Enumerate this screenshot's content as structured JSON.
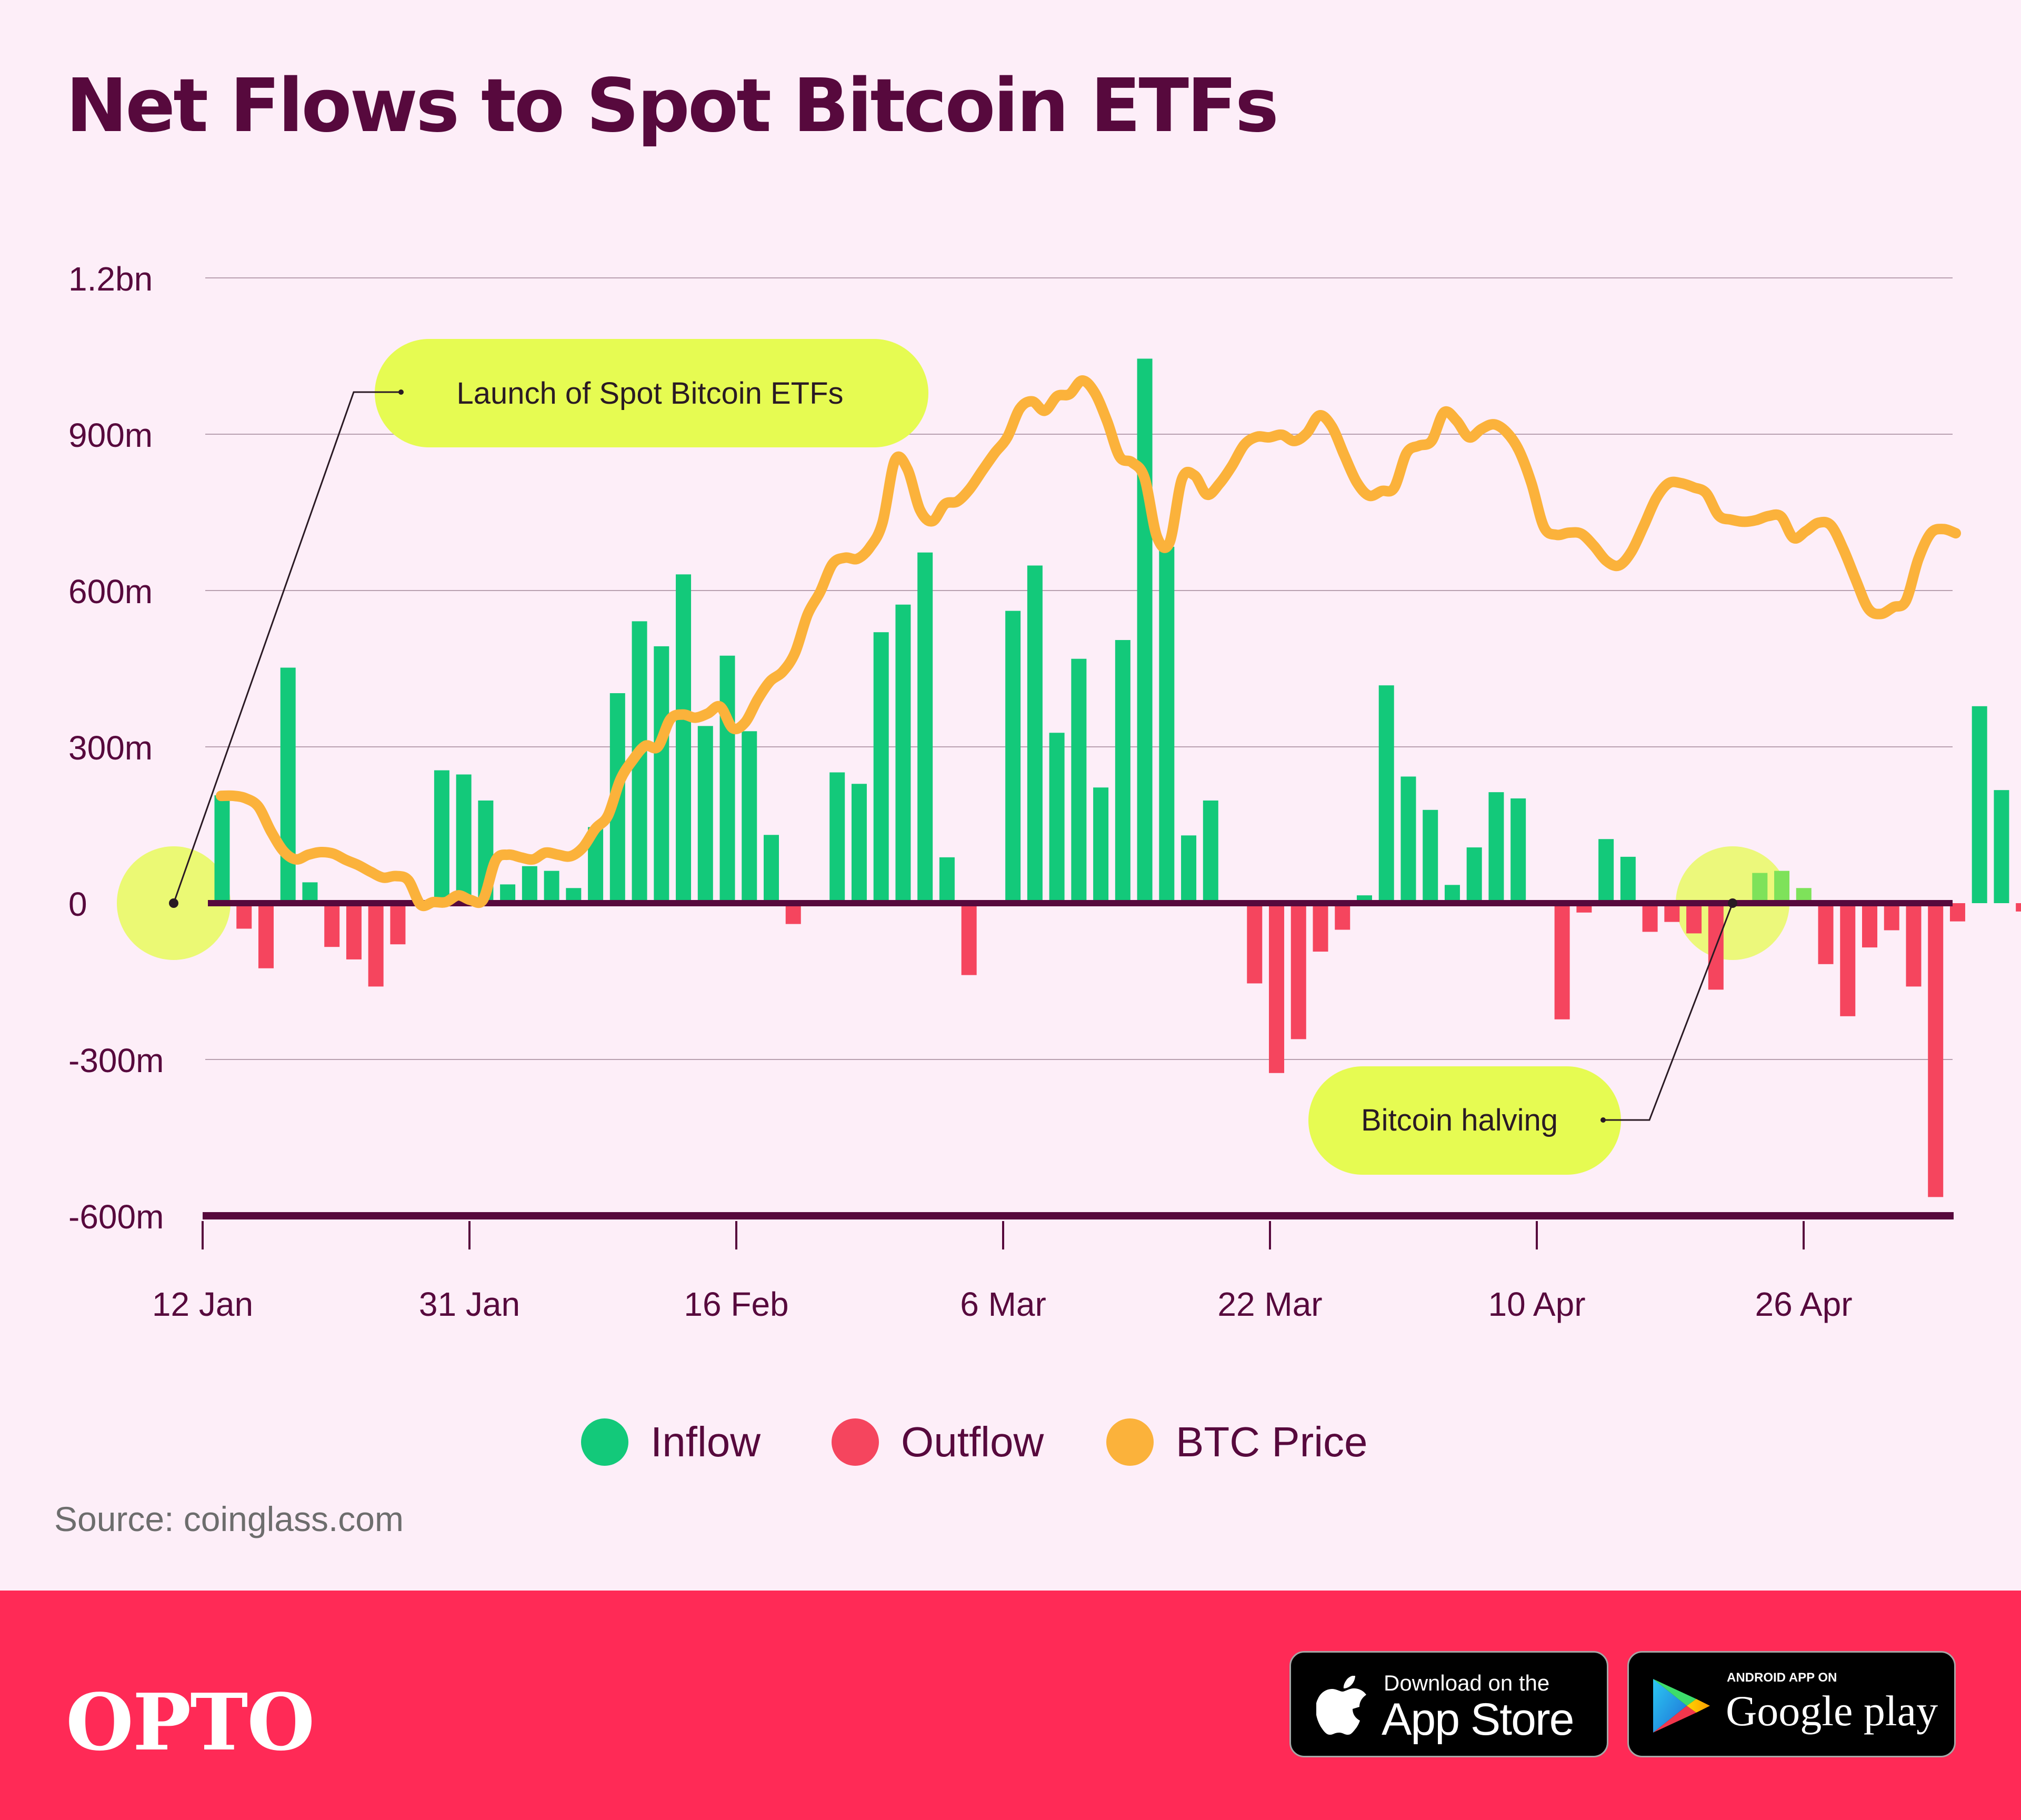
{
  "title": "Net Flows to Spot Bitcoin ETFs",
  "colors": {
    "background": "#fdeef8",
    "title": "#57093d",
    "inflow": "#13c97a",
    "outflow": "#f5455e",
    "btc_price": "#fbb23b",
    "annotation_bubble": "#e6fb52",
    "grid": "#b8a0b0",
    "footer": "#ff2a56"
  },
  "chart_data": {
    "type": "bar",
    "ylim": [
      -600,
      1200
    ],
    "y_unit": "m USD",
    "y_ticks": [
      {
        "value": 1200,
        "label": "1.2bn"
      },
      {
        "value": 900,
        "label": "900m"
      },
      {
        "value": 600,
        "label": "600m"
      },
      {
        "value": 300,
        "label": "300m"
      },
      {
        "value": 0,
        "label": "0"
      },
      {
        "value": -300,
        "label": "-300m"
      },
      {
        "value": -600,
        "label": "-600m"
      }
    ],
    "x_ticks": [
      {
        "index": 0,
        "label": "12 Jan"
      },
      {
        "index": 12,
        "label": "31 Jan"
      },
      {
        "index": 24,
        "label": "16 Feb"
      },
      {
        "index": 36,
        "label": "6 Mar"
      },
      {
        "index": 48,
        "label": "22 Mar"
      },
      {
        "index": 60,
        "label": "10 Apr"
      },
      {
        "index": 72,
        "label": "26 Apr"
      }
    ],
    "grid": true,
    "legend_position": "bottom",
    "series": [
      {
        "name": "Inflow",
        "type": "bar",
        "color": "#13c97a"
      },
      {
        "name": "Outflow",
        "type": "bar",
        "color": "#f5455e"
      },
      {
        "name": "BTC Price",
        "type": "line",
        "color": "#fbb23b"
      }
    ],
    "net_flows": [
      207,
      -49,
      -125,
      452,
      40,
      -84,
      -108,
      -160,
      -79,
      2,
      255,
      247,
      197,
      36,
      71,
      62,
      29,
      146,
      403,
      541,
      493,
      631,
      340,
      475,
      330,
      131,
      -40,
      0,
      251,
      229,
      520,
      573,
      673,
      88,
      -138,
      0,
      561,
      648,
      327,
      469,
      222,
      505,
      1045,
      684,
      130,
      197,
      0,
      -154,
      -326,
      -261,
      -93,
      -51,
      15,
      418,
      243,
      179,
      35,
      107,
      213,
      201,
      0,
      -223,
      -18,
      123,
      89,
      -55,
      -36,
      -58,
      -166,
      0,
      58,
      62,
      29,
      -117,
      -217,
      -85,
      -52,
      -160,
      -564,
      -35,
      378,
      217,
      -16
    ],
    "btc_price_relative": [
      206,
      206,
      201,
      185,
      138,
      100,
      84,
      93,
      98,
      95,
      83,
      73,
      60,
      49,
      52,
      44,
      -3,
      2,
      2,
      15,
      6,
      7,
      82,
      93,
      88,
      84,
      97,
      93,
      90,
      107,
      143,
      168,
      237,
      275,
      302,
      300,
      353,
      362,
      356,
      364,
      377,
      336,
      347,
      391,
      426,
      444,
      481,
      554,
      597,
      651,
      663,
      661,
      683,
      730,
      850,
      833,
      755,
      733,
      766,
      771,
      795,
      830,
      864,
      894,
      949,
      963,
      945,
      973,
      977,
      1003,
      980,
      925,
      857,
      846,
      816,
      703,
      692,
      814,
      821,
      784,
      805,
      839,
      880,
      895,
      894,
      899,
      887,
      902,
      936,
      915,
      860,
      808,
      782,
      791,
      797,
      864,
      878,
      887,
      942,
      926,
      894,
      910,
      919,
      904,
      869,
      806,
      722,
      707,
      711,
      709,
      686,
      657,
      648,
      674,
      724,
      777,
      806,
      806,
      798,
      787,
      744,
      736,
      732,
      735,
      743,
      742,
      701,
      714,
      730,
      725,
      679,
      620,
      565,
      555,
      568,
      580,
      660,
      710,
      718,
      710
    ]
  },
  "annotations": [
    {
      "text": "Launch of Spot Bitcoin ETFs"
    },
    {
      "text": "Bitcoin halving"
    }
  ],
  "legend": {
    "inflow": "Inflow",
    "outflow": "Outflow",
    "btc_price": "BTC Price"
  },
  "source": "Source: coinglass.com",
  "footer": {
    "brand": "OPTO",
    "appstore_small": "Download on the",
    "appstore_big": "App Store",
    "googleplay_small": "ANDROID APP ON",
    "googleplay_big": "Google play",
    "apple_icon": "apple-icon",
    "play_icon": "play-triangle-icon"
  }
}
